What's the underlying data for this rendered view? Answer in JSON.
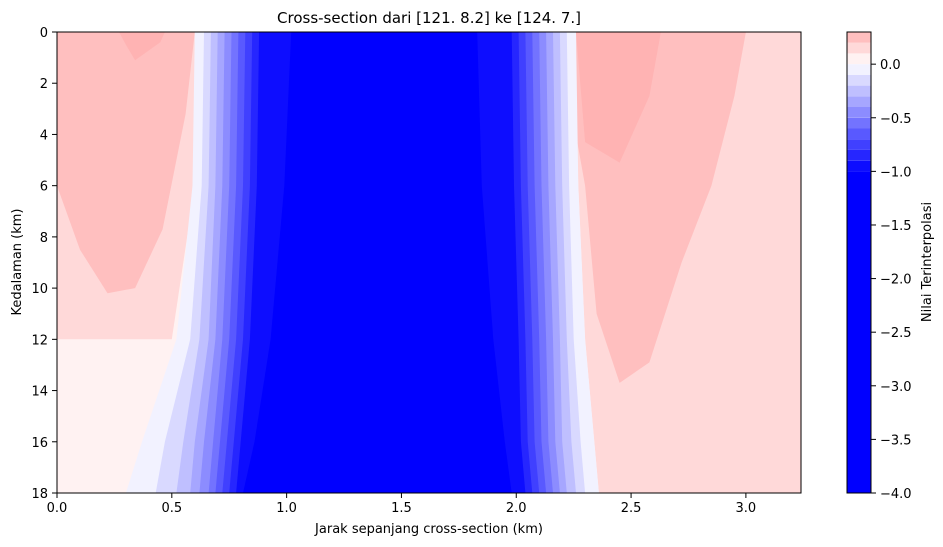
{
  "chart_data": {
    "type": "heatmap",
    "subtype": "filled-contour cross-section",
    "title": "Cross-section dari [121.    8.2] ke [124.   7.]",
    "xlabel": "Jarak sepanjang cross-section (km)",
    "ylabel": "Kedalaman (km)",
    "colorbar_label": "Nilai Terinterpolasi",
    "xlim": [
      0,
      3.24
    ],
    "ylim": [
      18,
      0
    ],
    "y_inverted": true,
    "x_ticks": [
      0.0,
      0.5,
      1.0,
      1.5,
      2.0,
      2.5,
      3.0
    ],
    "x_tick_labels": [
      "0.0",
      "0.5",
      "1.0",
      "1.5",
      "2.0",
      "2.5",
      "3.0"
    ],
    "y_ticks": [
      0,
      2,
      4,
      6,
      8,
      10,
      12,
      14,
      16,
      18
    ],
    "y_tick_labels": [
      "0",
      "2",
      "4",
      "6",
      "8",
      "10",
      "12",
      "14",
      "16",
      "18"
    ],
    "colorbar_range": [
      -4.0,
      0.3
    ],
    "colorbar_ticks": [
      0.0,
      -0.5,
      -1.0,
      -1.5,
      -2.0,
      -2.5,
      -3.0,
      -3.5,
      -4.0
    ],
    "colorbar_tick_labels": [
      "0.0",
      "−0.5",
      "−1.0",
      "−1.5",
      "−2.0",
      "−2.5",
      "−3.0",
      "−3.5",
      "−4.0"
    ],
    "colormap": "bwr",
    "color_low": "#0000ff",
    "color_mid": "#ffffff",
    "color_high": "#ff0000",
    "contour_levels": [
      -4.0,
      -1.0,
      -0.9,
      -0.8,
      -0.7,
      -0.6,
      -0.5,
      -0.4,
      -0.3,
      -0.2,
      -0.1,
      0.0,
      0.1,
      0.2,
      0.3
    ],
    "bands": [
      {
        "level": "-0.1 to 0.0",
        "top": [
          [
            0.6,
            0
          ],
          [
            0.59,
            6
          ],
          [
            0.52,
            12
          ],
          [
            0.37,
            16
          ],
          [
            0.3,
            18
          ]
        ],
        "right": [
          [
            2.26,
            0
          ],
          [
            2.27,
            6
          ],
          [
            2.3,
            12
          ],
          [
            2.34,
            16
          ],
          [
            2.36,
            18
          ]
        ]
      },
      {
        "level": "-0.2 to -0.1",
        "top": [
          [
            0.64,
            0
          ],
          [
            0.63,
            6
          ],
          [
            0.58,
            12
          ],
          [
            0.47,
            16
          ],
          [
            0.43,
            18
          ]
        ],
        "right": [
          [
            2.22,
            0
          ],
          [
            2.23,
            6
          ],
          [
            2.25,
            12
          ],
          [
            2.28,
            16
          ],
          [
            2.3,
            18
          ]
        ]
      },
      {
        "level": "-0.3 to -0.2",
        "top": [
          [
            0.67,
            0
          ],
          [
            0.66,
            6
          ],
          [
            0.62,
            12
          ],
          [
            0.55,
            16
          ],
          [
            0.52,
            18
          ]
        ],
        "right": [
          [
            2.19,
            0
          ],
          [
            2.2,
            6
          ],
          [
            2.22,
            12
          ],
          [
            2.24,
            16
          ],
          [
            2.26,
            18
          ]
        ]
      },
      {
        "level": "-0.4 to -0.3",
        "top": [
          [
            0.7,
            0
          ],
          [
            0.69,
            6
          ],
          [
            0.66,
            12
          ],
          [
            0.6,
            16
          ],
          [
            0.58,
            18
          ]
        ],
        "right": [
          [
            2.16,
            0
          ],
          [
            2.17,
            6
          ],
          [
            2.19,
            12
          ],
          [
            2.2,
            16
          ],
          [
            2.22,
            18
          ]
        ]
      },
      {
        "level": "-0.5 to -0.4",
        "top": [
          [
            0.73,
            0
          ],
          [
            0.72,
            6
          ],
          [
            0.69,
            12
          ],
          [
            0.64,
            16
          ],
          [
            0.62,
            18
          ]
        ],
        "right": [
          [
            2.13,
            0
          ],
          [
            2.14,
            6
          ],
          [
            2.16,
            12
          ],
          [
            2.17,
            16
          ],
          [
            2.19,
            18
          ]
        ]
      },
      {
        "level": "-0.6 to -0.5",
        "top": [
          [
            0.76,
            0
          ],
          [
            0.75,
            6
          ],
          [
            0.72,
            12
          ],
          [
            0.68,
            16
          ],
          [
            0.66,
            18
          ]
        ],
        "right": [
          [
            2.1,
            0
          ],
          [
            2.11,
            6
          ],
          [
            2.13,
            12
          ],
          [
            2.14,
            16
          ],
          [
            2.16,
            18
          ]
        ]
      },
      {
        "level": "-0.7 to -0.6",
        "top": [
          [
            0.79,
            0
          ],
          [
            0.78,
            6
          ],
          [
            0.75,
            12
          ],
          [
            0.71,
            16
          ],
          [
            0.69,
            18
          ]
        ],
        "right": [
          [
            2.07,
            0
          ],
          [
            2.08,
            6
          ],
          [
            2.1,
            12
          ],
          [
            2.11,
            16
          ],
          [
            2.13,
            18
          ]
        ]
      },
      {
        "level": "-0.8 to -0.7",
        "top": [
          [
            0.82,
            0
          ],
          [
            0.81,
            6
          ],
          [
            0.78,
            12
          ],
          [
            0.74,
            16
          ],
          [
            0.72,
            18
          ]
        ],
        "right": [
          [
            2.04,
            0
          ],
          [
            2.05,
            6
          ],
          [
            2.07,
            12
          ],
          [
            2.08,
            16
          ],
          [
            2.1,
            18
          ]
        ]
      },
      {
        "level": "-0.9 to -0.8",
        "top": [
          [
            0.85,
            0
          ],
          [
            0.84,
            6
          ],
          [
            0.81,
            12
          ],
          [
            0.77,
            16
          ],
          [
            0.75,
            18
          ]
        ],
        "right": [
          [
            2.01,
            0
          ],
          [
            2.02,
            6
          ],
          [
            2.04,
            12
          ],
          [
            2.05,
            16
          ],
          [
            2.07,
            18
          ]
        ]
      },
      {
        "level": "-1.0 to -0.9",
        "top": [
          [
            0.88,
            0
          ],
          [
            0.87,
            6
          ],
          [
            0.84,
            12
          ],
          [
            0.8,
            16
          ],
          [
            0.78,
            18
          ]
        ],
        "right": [
          [
            1.98,
            0
          ],
          [
            1.99,
            6
          ],
          [
            2.01,
            12
          ],
          [
            2.02,
            16
          ],
          [
            2.04,
            18
          ]
        ]
      },
      {
        "level": "-4.0 to -1.0",
        "top": [
          [
            1.02,
            0
          ],
          [
            0.99,
            6
          ],
          [
            0.93,
            12
          ],
          [
            0.86,
            16
          ],
          [
            0.81,
            18
          ]
        ],
        "right": [
          [
            1.83,
            0
          ],
          [
            1.85,
            6
          ],
          [
            1.9,
            12
          ],
          [
            1.95,
            16
          ],
          [
            1.98,
            18
          ]
        ]
      }
    ],
    "positive_regions": [
      {
        "level": "0.1 to 0.2",
        "polygon": [
          [
            0,
            0
          ],
          [
            0.62,
            0
          ],
          [
            0.6,
            6
          ],
          [
            0.5,
            12
          ],
          [
            0,
            12
          ]
        ]
      },
      {
        "level": "0.1 to 0.2",
        "polygon": [
          [
            2.25,
            0
          ],
          [
            3.24,
            0
          ],
          [
            3.24,
            18
          ],
          [
            2.36,
            18
          ],
          [
            2.3,
            12
          ],
          [
            2.27,
            6
          ]
        ]
      },
      {
        "level": "0.2 to 0.3",
        "polygon": [
          [
            0,
            0
          ],
          [
            0.6,
            0
          ],
          [
            0.56,
            3.2
          ],
          [
            0.46,
            7.7
          ],
          [
            0.34,
            10.0
          ],
          [
            0.22,
            10.2
          ],
          [
            0.1,
            8.5
          ],
          [
            0,
            6
          ]
        ]
      },
      {
        "level": "0.2 to 0.3",
        "polygon": [
          [
            2.2,
            0
          ],
          [
            3.0,
            0
          ],
          [
            2.95,
            2.5
          ],
          [
            2.85,
            6.0
          ],
          [
            2.72,
            9.0
          ],
          [
            2.58,
            12.9
          ],
          [
            2.45,
            13.7
          ],
          [
            2.35,
            11.0
          ],
          [
            2.3,
            6.0
          ],
          [
            2.22,
            2.0
          ]
        ]
      },
      {
        "level": "0.3 and above",
        "polygon": [
          [
            0.27,
            0
          ],
          [
            0.47,
            0
          ],
          [
            0.45,
            0.4
          ],
          [
            0.34,
            1.1
          ],
          [
            0.3,
            0.5
          ]
        ]
      },
      {
        "level": "0.3 and above",
        "polygon": [
          [
            2.26,
            0
          ],
          [
            2.63,
            0
          ],
          [
            2.58,
            2.5
          ],
          [
            2.45,
            5.1
          ],
          [
            2.3,
            4.3
          ]
        ]
      }
    ]
  }
}
